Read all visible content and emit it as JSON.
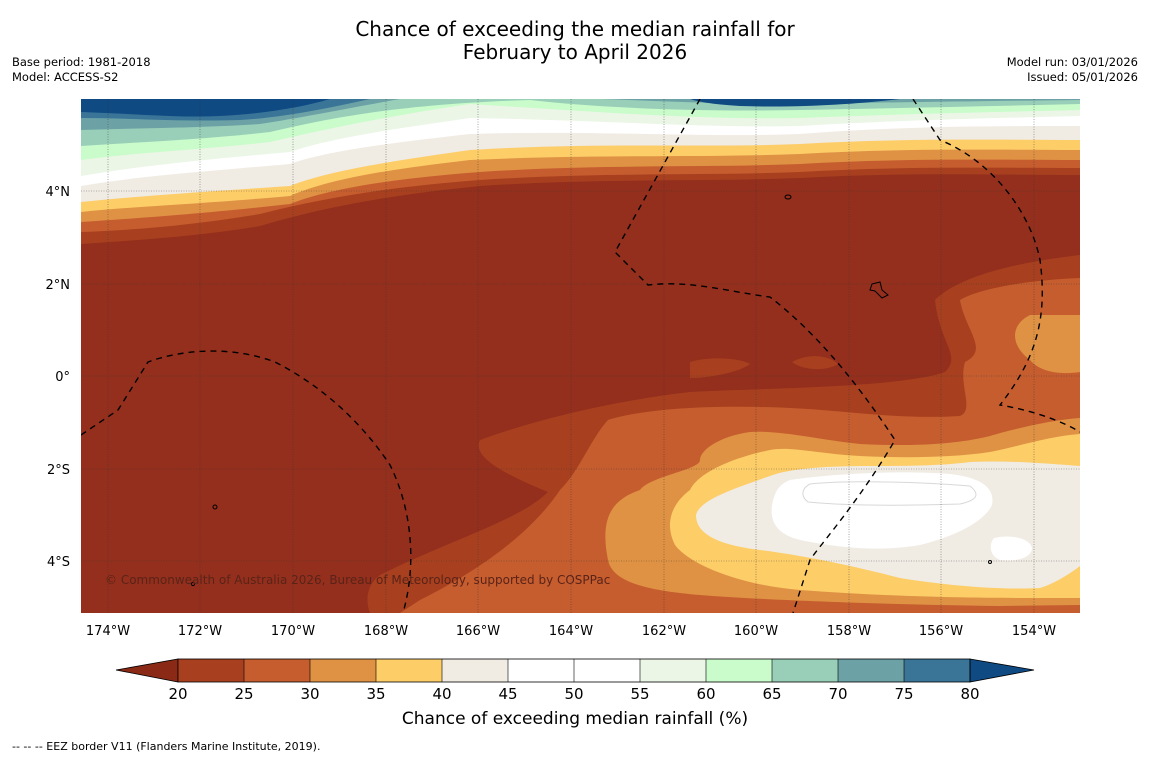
{
  "header": {
    "title_line1": "Chance of exceeding the median rainfall for",
    "title_line2": "February to April 2026",
    "base_period": "Base period: 1981-2018",
    "model": "Model: ACCESS-S2",
    "model_run": "Model run: 03/01/2026",
    "issued": "Issued: 05/01/2026"
  },
  "map": {
    "lon_labels": [
      "174°W",
      "172°W",
      "170°W",
      "168°W",
      "166°W",
      "164°W",
      "162°W",
      "160°W",
      "158°W",
      "156°W",
      "154°W"
    ],
    "lat_labels": [
      "4°N",
      "2°N",
      "0°",
      "2°S",
      "4°S"
    ],
    "copyright": "© Commonwealth of Australia 2026, Bureau of Meteorology, supported by COSPPac"
  },
  "colorbar": {
    "title": "Chance of exceeding median rainfall (%)",
    "ticks": [
      "20",
      "25",
      "30",
      "35",
      "40",
      "45",
      "50",
      "55",
      "60",
      "65",
      "70",
      "75",
      "80"
    ],
    "colors": {
      "lt20": "#8a2a16",
      "b20_25": "#a8401f",
      "b25_30": "#c65d2f",
      "b30_35": "#df9244",
      "b35_40": "#fdcd68",
      "b40_45": "#f0ebe3",
      "b45_50": "#ffffff",
      "b50_55": "#ffffff",
      "b55_60": "#ebf6e6",
      "b60_65": "#c9fcca",
      "b65_70": "#99cfb8",
      "b70_75": "#6ca2a6",
      "b75_80": "#3a7598",
      "gt80": "#0f4a83",
      "land": "#8d2f1a",
      "dry": "#942f1d"
    }
  },
  "footer": {
    "eez_note": "--  --  -- EEZ border V11 (Flanders Marine Institute, 2019)."
  }
}
